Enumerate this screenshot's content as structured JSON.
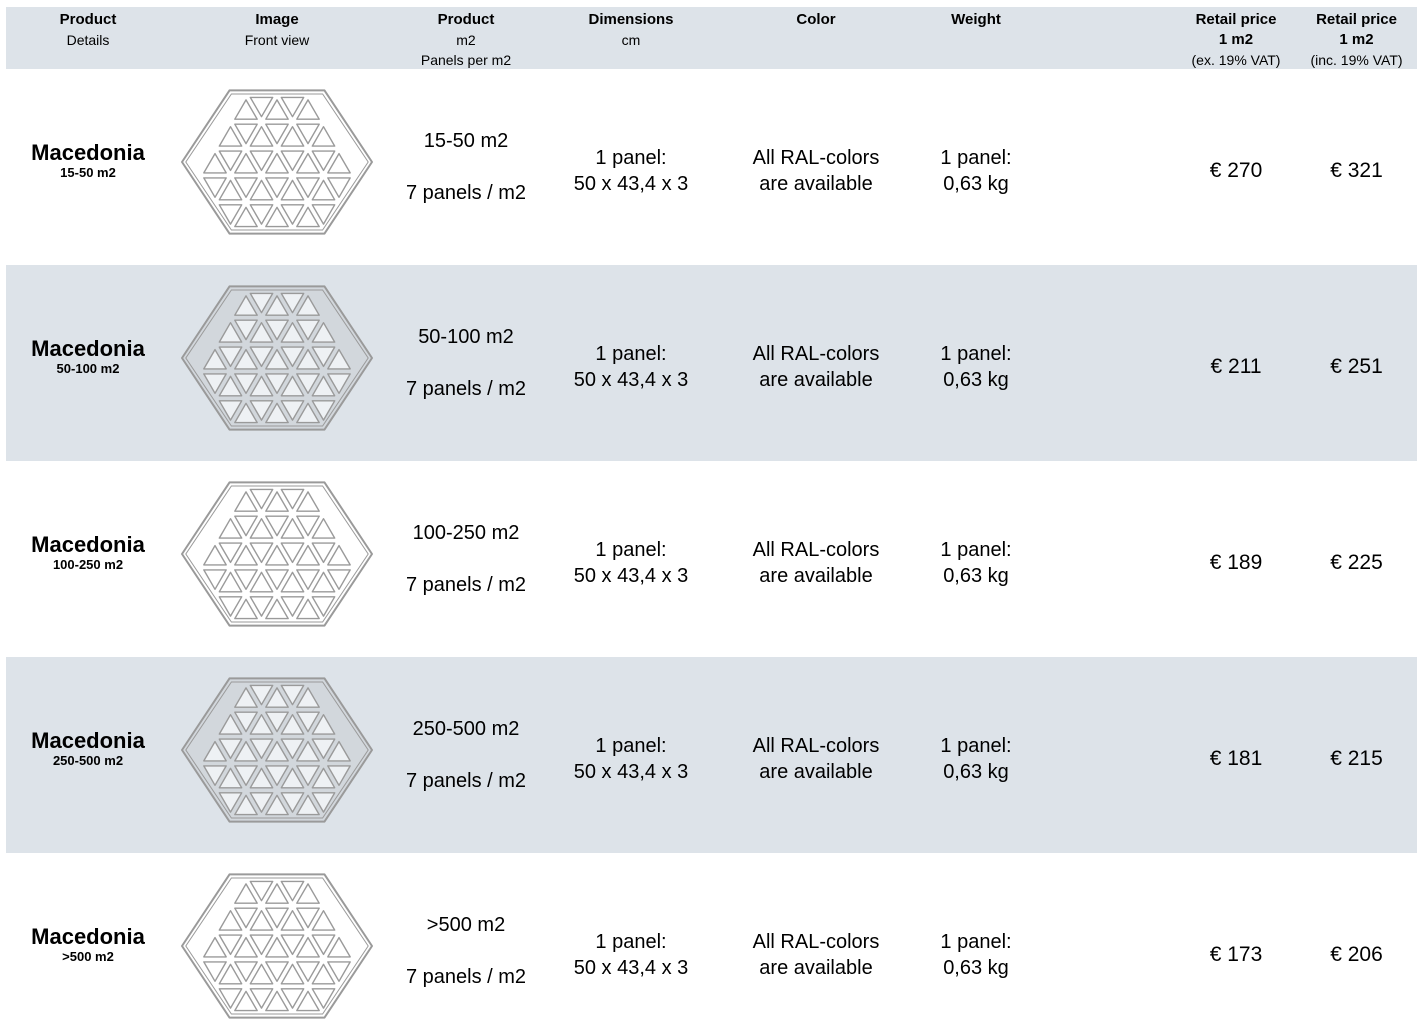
{
  "header": {
    "product_details": {
      "line1": "Product",
      "line2": "Details"
    },
    "image": {
      "line1": "Image",
      "line2": "Front view"
    },
    "product_m2": {
      "line1": "Product",
      "line2": "m2",
      "line3": "Panels per m2"
    },
    "dimensions": {
      "line1": "Dimensions",
      "line2": "cm"
    },
    "color": {
      "line1": "Color"
    },
    "weight": {
      "line1": "Weight"
    },
    "retail_ex": {
      "line1": "Retail price",
      "line2": "1 m2",
      "line3": "(ex. 19% VAT)"
    },
    "retail_inc": {
      "line1": "Retail price",
      "line2": "1 m2",
      "line3": "(inc. 19% VAT)"
    }
  },
  "rows": [
    {
      "name": "Macedonia",
      "sub": "15-50 m2",
      "qty_range": "15-50 m2",
      "panels": "7 panels / m2",
      "dim1": "1 panel:",
      "dim2": "50 x 43,4 x 3",
      "color1": "All RAL-colors",
      "color2": "are available",
      "weight1": "1 panel:",
      "weight2": "0,63 kg",
      "price_ex": "€ 270",
      "price_inc": "€ 321"
    },
    {
      "name": "Macedonia",
      "sub": "50-100 m2",
      "qty_range": "50-100 m2",
      "panels": "7 panels / m2",
      "dim1": "1 panel:",
      "dim2": "50 x 43,4 x 3",
      "color1": "All RAL-colors",
      "color2": "are available",
      "weight1": "1 panel:",
      "weight2": "0,63 kg",
      "price_ex": "€ 211",
      "price_inc": "€ 251"
    },
    {
      "name": "Macedonia",
      "sub": "100-250 m2",
      "qty_range": "100-250 m2",
      "panels": "7 panels / m2",
      "dim1": "1 panel:",
      "dim2": "50 x 43,4 x 3",
      "color1": "All RAL-colors",
      "color2": "are available",
      "weight1": "1 panel:",
      "weight2": "0,63 kg",
      "price_ex": "€ 189",
      "price_inc": "€ 225"
    },
    {
      "name": "Macedonia",
      "sub": "250-500 m2",
      "qty_range": "250-500 m2",
      "panels": "7 panels / m2",
      "dim1": "1 panel:",
      "dim2": "50 x 43,4 x 3",
      "color1": "All RAL-colors",
      "color2": "are available",
      "weight1": "1 panel:",
      "weight2": "0,63 kg",
      "price_ex": "€ 181",
      "price_inc": "€ 215"
    },
    {
      "name": "Macedonia",
      "sub": ">500 m2",
      "qty_range": ">500 m2",
      "panels": "7 panels / m2",
      "dim1": "1 panel:",
      "dim2": "50 x 43,4 x 3",
      "color1": "All RAL-colors",
      "color2": "are available",
      "weight1": "1 panel:",
      "weight2": "0,63 kg",
      "price_ex": "€ 173",
      "price_inc": "€ 206"
    }
  ],
  "colors": {
    "header_bg": "#dde3e9",
    "shaded_row_bg": "#dde3e9",
    "panel_stroke": "#9a9a9a",
    "panel_fill_light": "#ffffff",
    "panel_fill_dark": "#d2d7dc"
  },
  "icon": "hexagon-triangle-panel-icon"
}
